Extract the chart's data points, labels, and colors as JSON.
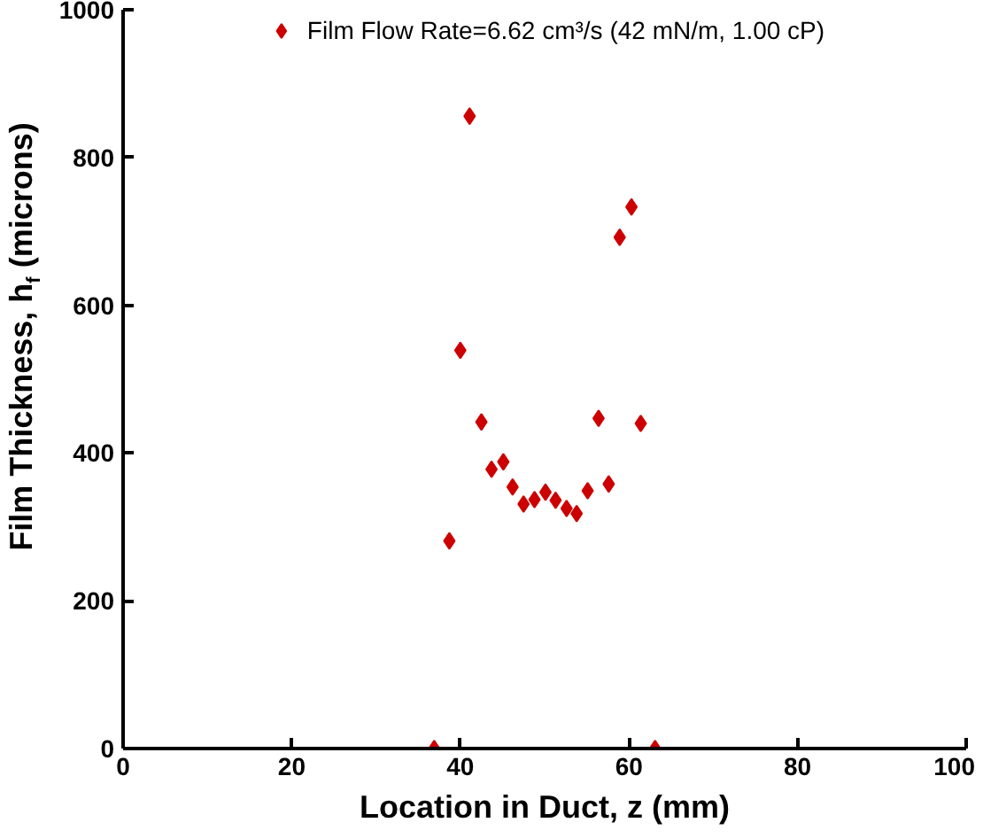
{
  "chart_data": {
    "type": "scatter",
    "xlabel": "Location in Duct, z (mm)",
    "ylabel": "Film Thickness, h$_{f}$ (microns)",
    "x": [
      36.9,
      38.7,
      40.0,
      41.1,
      42.5,
      43.7,
      45.1,
      46.2,
      47.5,
      48.8,
      50.1,
      51.3,
      52.6,
      53.8,
      55.1,
      56.4,
      57.6,
      58.9,
      60.3,
      61.4,
      63.1
    ],
    "series": [
      {
        "name": "Film Flow Rate=6.62 cm³/s (42 mN/m, 1.00 cP)",
        "color": "#cc0000",
        "values": [
          0,
          281,
          539,
          856,
          442,
          378,
          388,
          354,
          331,
          337,
          347,
          336,
          325,
          318,
          349,
          447,
          358,
          692,
          733,
          440,
          0
        ]
      }
    ],
    "xlim": [
      0,
      100
    ],
    "ylim": [
      0,
      1000
    ],
    "xticks": [
      0,
      20,
      40,
      60,
      80,
      100
    ],
    "yticks": [
      0,
      200,
      400,
      600,
      800,
      1000
    ],
    "grid": false,
    "legend": "top",
    "marker": "diamond"
  }
}
